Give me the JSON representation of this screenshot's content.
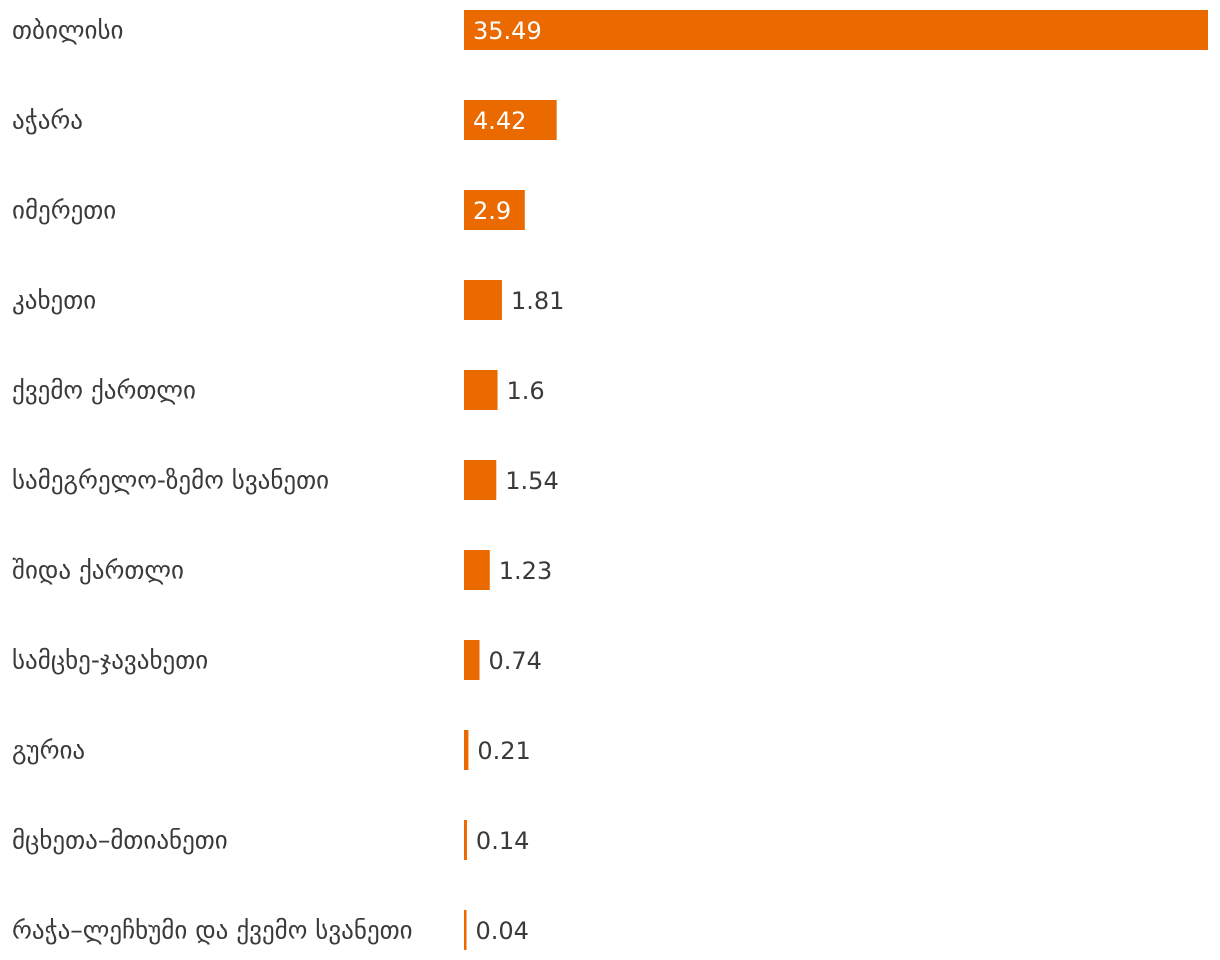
{
  "colors": {
    "bar": "#eb6a00",
    "label_text": "#3a3a3a",
    "inside_value_text": "#ffffff"
  },
  "chart_data": {
    "type": "bar",
    "orientation": "horizontal",
    "categories": [
      "თბილისი",
      "აჭარა",
      "იმერეთი",
      "კახეთი",
      "ქვემო ქართლი",
      "სამეგრელო-ზემო სვანეთი",
      "შიდა ქართლი",
      "სამცხე-ჯავახეთი",
      "გურია",
      "მცხეთა–მთიანეთი",
      "რაჭა–ლეჩხუმი და ქვემო სვანეთი"
    ],
    "values": [
      35.49,
      4.42,
      2.9,
      1.81,
      1.6,
      1.54,
      1.23,
      0.74,
      0.21,
      0.14,
      0.04
    ],
    "value_labels": [
      "35.49",
      "4.42",
      "2.9",
      "1.81",
      "1.6",
      "1.54",
      "1.23",
      "0.74",
      "0.21",
      "0.14",
      "0.04"
    ],
    "title": "",
    "xlabel": "",
    "ylabel": "",
    "xlim": [
      0,
      35.49
    ],
    "grid": false,
    "legend": "none"
  }
}
